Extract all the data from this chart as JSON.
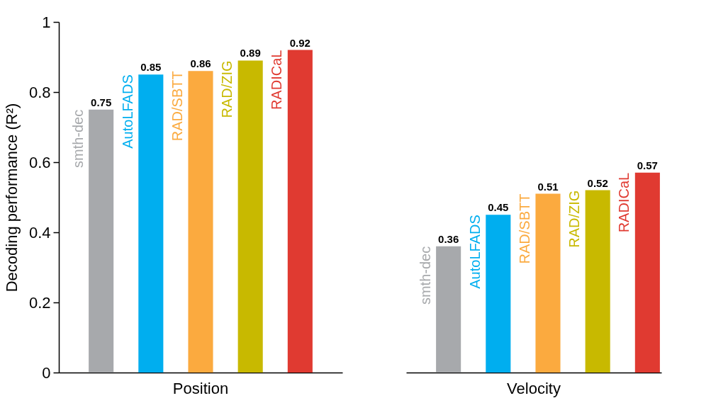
{
  "chart_data": {
    "type": "bar",
    "ylabel": "Decoding performance (R²)",
    "categories": [
      "Position",
      "Velocity"
    ],
    "series": [
      {
        "name": "smth-dec",
        "color": "#a7a9ac",
        "values": [
          0.75,
          0.36
        ]
      },
      {
        "name": "AutoLFADS",
        "color": "#00aeef",
        "values": [
          0.85,
          0.45
        ]
      },
      {
        "name": "RAD/SBTT",
        "color": "#fbaa3f",
        "values": [
          0.86,
          0.51
        ]
      },
      {
        "name": "RAD/ZIG",
        "color": "#c8b900",
        "values": [
          0.89,
          0.52
        ]
      },
      {
        "name": "RADICaL",
        "color": "#e03a31",
        "values": [
          0.92,
          0.57
        ]
      }
    ],
    "ylim": [
      0,
      1
    ],
    "yticks": [
      0,
      0.2,
      0.4,
      0.6,
      0.8,
      1
    ],
    "data_labels": true,
    "legend": false
  }
}
